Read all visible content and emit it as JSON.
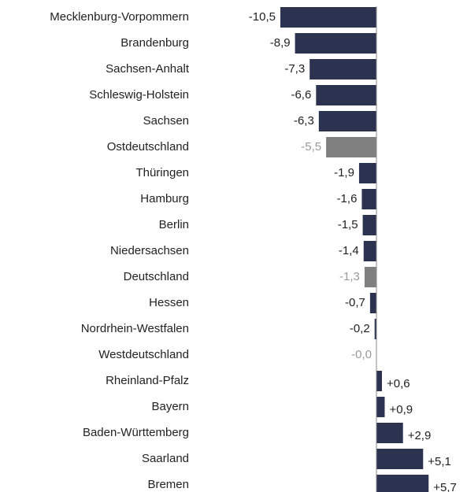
{
  "chart_data": {
    "type": "hbar",
    "categories": [
      "Mecklenburg-Vorpommern",
      "Brandenburg",
      "Sachsen-Anhalt",
      "Schleswig-Holstein",
      "Sachsen",
      "Ostdeutschland",
      "Thüringen",
      "Hamburg",
      "Berlin",
      "Niedersachsen",
      "Deutschland",
      "Hessen",
      "Nordrhein-Westfalen",
      "Westdeutschland",
      "Rheinland-Pfalz",
      "Bayern",
      "Baden-Württemberg",
      "Saarland",
      "Bremen"
    ],
    "values": [
      -10.5,
      -8.9,
      -7.3,
      -6.6,
      -6.3,
      -5.5,
      -1.9,
      -1.6,
      -1.5,
      -1.4,
      -1.3,
      -0.7,
      -0.2,
      0,
      0.6,
      0.9,
      2.9,
      5.1,
      5.7
    ],
    "value_labels": [
      "-10,5",
      "-8,9",
      "-7,3",
      "-6,6",
      "-6,3",
      "-5,5",
      "-1,9",
      "-1,6",
      "-1,5",
      "-1,4",
      "-1,3",
      "-0,7",
      "-0,2",
      "-0,0",
      "+0,6",
      "+0,9",
      "+2,9",
      "+5,1",
      "+5,7"
    ],
    "colors": [
      "#2b3350",
      "#2b3350",
      "#2b3350",
      "#2b3350",
      "#2b3350",
      "#808080",
      "#2b3350",
      "#2b3350",
      "#2b3350",
      "#2b3350",
      "#808080",
      "#2b3350",
      "#2b3350",
      "#808080",
      "#2b3350",
      "#2b3350",
      "#2b3350",
      "#2b3350",
      "#2b3350"
    ],
    "label_colors": [
      "#222222",
      "#222222",
      "#222222",
      "#222222",
      "#222222",
      "#999999",
      "#222222",
      "#222222",
      "#222222",
      "#222222",
      "#999999",
      "#222222",
      "#222222",
      "#999999",
      "#222222",
      "#222222",
      "#222222",
      "#222222",
      "#222222"
    ],
    "xlim": [
      -11,
      9
    ]
  }
}
